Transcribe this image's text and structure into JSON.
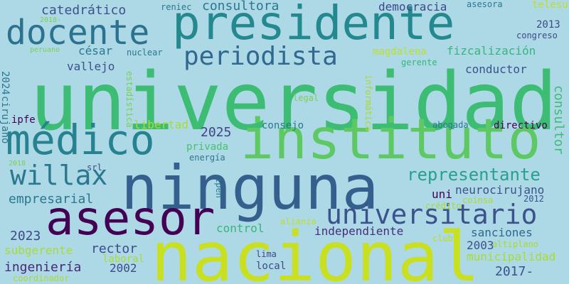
{
  "wordcloud": {
    "background": "#add8e6",
    "words": [
      {
        "text": "universidad",
        "color": "#3dbc74",
        "vertical": false
      },
      {
        "text": "ninguna",
        "color": "#355f8d",
        "vertical": false
      },
      {
        "text": "nacional",
        "color": "#c8e020",
        "vertical": false
      },
      {
        "text": "presidente",
        "color": "#23898e",
        "vertical": false
      },
      {
        "text": "instituto",
        "color": "#5ec962",
        "vertical": false
      },
      {
        "text": "médico",
        "color": "#26828e",
        "vertical": false
      },
      {
        "text": "docente",
        "color": "#2c728e",
        "vertical": false
      },
      {
        "text": "asesor",
        "color": "#440154",
        "vertical": false
      },
      {
        "text": "universitario",
        "color": "#3b528b",
        "vertical": false
      },
      {
        "text": "periodista",
        "color": "#31688e",
        "vertical": false
      },
      {
        "text": "willax",
        "color": "#2a788e",
        "vertical": false
      },
      {
        "text": "representante",
        "color": "#25a18e",
        "vertical": false
      },
      {
        "text": "consultora",
        "color": "#2a788e",
        "vertical": false
      },
      {
        "text": "catedrático",
        "color": "#3b528b",
        "vertical": false
      },
      {
        "text": "democracia",
        "color": "#3e4989",
        "vertical": false
      },
      {
        "text": "césar",
        "color": "#2a788e",
        "vertical": false
      },
      {
        "text": "vallejo",
        "color": "#3b528b",
        "vertical": false
      },
      {
        "text": "magdalena",
        "color": "#bddf26",
        "vertical": false
      },
      {
        "text": "fizcalización",
        "color": "#35b779",
        "vertical": false
      },
      {
        "text": "conductor",
        "color": "#3b528b",
        "vertical": false
      },
      {
        "text": "2025",
        "color": "#404387",
        "vertical": false
      },
      {
        "text": "libertad",
        "color": "#a8db34",
        "vertical": false
      },
      {
        "text": "privada",
        "color": "#4ac16d",
        "vertical": false
      },
      {
        "text": "empresarial",
        "color": "#2a788e",
        "vertical": false
      },
      {
        "text": "uni",
        "color": "#440154",
        "vertical": false
      },
      {
        "text": "neurocirujano",
        "color": "#3b528b",
        "vertical": false
      },
      {
        "text": "control",
        "color": "#35b779",
        "vertical": false
      },
      {
        "text": "independiente",
        "color": "#472d7b",
        "vertical": false
      },
      {
        "text": "sanciones",
        "color": "#31688e",
        "vertical": false
      },
      {
        "text": "2023",
        "color": "#3e4989",
        "vertical": false
      },
      {
        "text": "subgerente",
        "color": "#a8db34",
        "vertical": false
      },
      {
        "text": "rector",
        "color": "#3e4989",
        "vertical": false
      },
      {
        "text": "2003",
        "color": "#3b528b",
        "vertical": false
      },
      {
        "text": "municipalidad",
        "color": "#a8db34",
        "vertical": false
      },
      {
        "text": "ingeniería",
        "color": "#482878",
        "vertical": false
      },
      {
        "text": "2002",
        "color": "#3e4989",
        "vertical": false
      },
      {
        "text": "2017-",
        "color": "#3b528b",
        "vertical": false
      },
      {
        "text": "2013",
        "color": "#3e4989",
        "vertical": false
      },
      {
        "text": "congreso",
        "color": "#3e4989",
        "vertical": false
      },
      {
        "text": "telesup",
        "color": "#bddf26",
        "vertical": false
      },
      {
        "text": "asesora",
        "color": "#2a788e",
        "vertical": false
      },
      {
        "text": "reniec",
        "color": "#2a788e",
        "vertical": false
      },
      {
        "text": "nuclear",
        "color": "#2a788e",
        "vertical": false
      },
      {
        "text": "peruano",
        "color": "#7ad151",
        "vertical": false
      },
      {
        "text": "2018-",
        "color": "#7ad151",
        "vertical": false
      },
      {
        "text": "gerente",
        "color": "#35b779",
        "vertical": false
      },
      {
        "text": "legal",
        "color": "#7ad151",
        "vertical": false
      },
      {
        "text": "ipfe",
        "color": "#440154",
        "vertical": false
      },
      {
        "text": "consejo",
        "color": "#2a788e",
        "vertical": false
      },
      {
        "text": "abogada",
        "color": "#2a788e",
        "vertical": false
      },
      {
        "text": "directivo",
        "color": "#440154",
        "vertical": false
      },
      {
        "text": "energía",
        "color": "#2a788e",
        "vertical": false
      },
      {
        "text": "2018",
        "color": "#7ad151",
        "vertical": false
      },
      {
        "text": "srl",
        "color": "#3e4989",
        "vertical": false
      },
      {
        "text": "2012",
        "color": "#3b528b",
        "vertical": false
      },
      {
        "text": "crédito",
        "color": "#a8db34",
        "vertical": false
      },
      {
        "text": "coinsa",
        "color": "#a8db34",
        "vertical": false
      },
      {
        "text": "alianza",
        "color": "#bddf26",
        "vertical": false
      },
      {
        "text": "club",
        "color": "#bddf26",
        "vertical": false
      },
      {
        "text": "altiplano",
        "color": "#a8db34",
        "vertical": false
      },
      {
        "text": "lima",
        "color": "#3e4989",
        "vertical": false
      },
      {
        "text": "local",
        "color": "#3e4989",
        "vertical": false
      },
      {
        "text": "laboral",
        "color": "#a8db34",
        "vertical": false
      },
      {
        "text": "coordinador",
        "color": "#a8db34",
        "vertical": false
      },
      {
        "text": "2024",
        "color": "#2a788e",
        "vertical": true
      },
      {
        "text": "cirujano",
        "color": "#2a788e",
        "vertical": true
      },
      {
        "text": "estadística",
        "color": "#7ad151",
        "vertical": true
      },
      {
        "text": "informática",
        "color": "#a8db34",
        "vertical": true
      },
      {
        "text": "ipen",
        "color": "#2a788e",
        "vertical": true
      },
      {
        "text": "consultor",
        "color": "#3dbc74",
        "vertical": true
      }
    ]
  }
}
